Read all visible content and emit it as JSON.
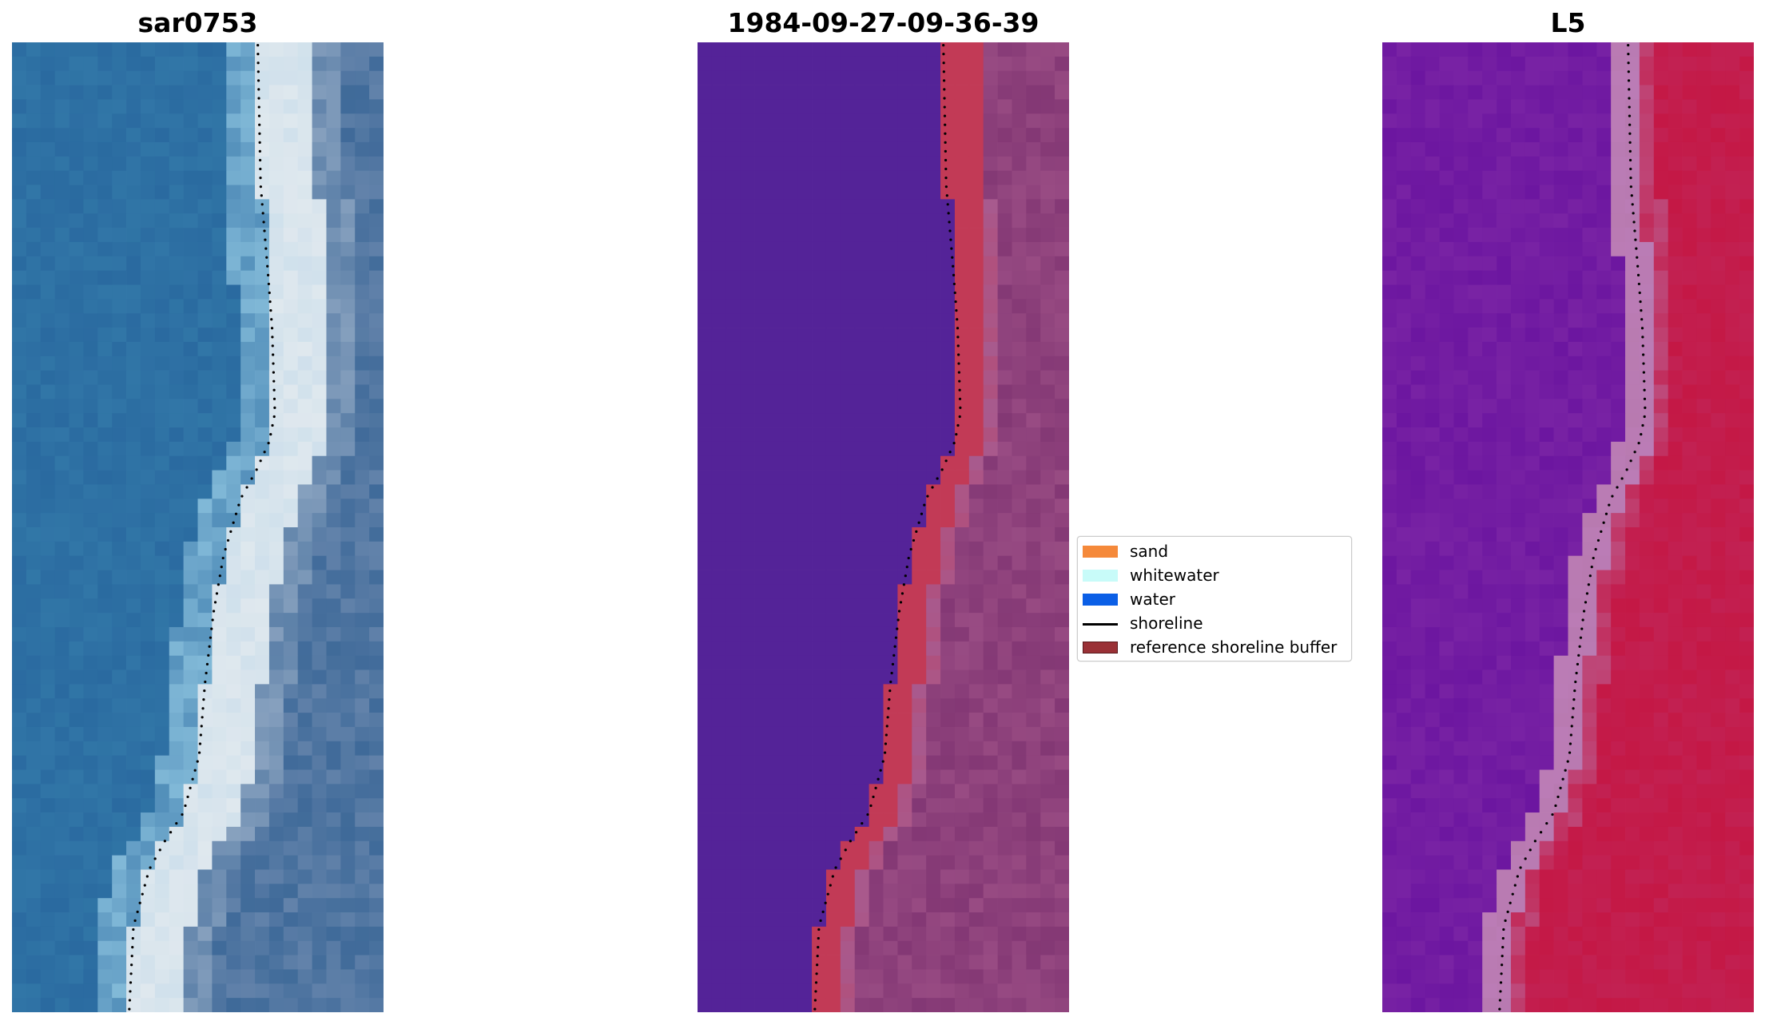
{
  "panels": [
    {
      "id": "rgb",
      "title": "sar0753"
    },
    {
      "id": "classification",
      "title": "1984-09-27-09-36-39"
    },
    {
      "id": "index",
      "title": "L5"
    }
  ],
  "legend": {
    "items": [
      {
        "label": "sand",
        "kind": "patch",
        "color": "#f5893a"
      },
      {
        "label": "whitewater",
        "kind": "patch",
        "color": "#c8fbf9"
      },
      {
        "label": "water",
        "kind": "patch",
        "color": "#0b5fe6"
      },
      {
        "label": "shoreline",
        "kind": "line",
        "color": "#000000"
      },
      {
        "label": "reference shoreline buffer",
        "kind": "patch",
        "color": "#9a3136",
        "edge": "#5a1a1d"
      }
    ]
  },
  "colors": {
    "rgb_water": "#2a6aa0",
    "rgb_surf": "#dfe8ee",
    "rgb_land": "#3f6a99",
    "class_water": "#542398",
    "class_buffer": "#c23a56",
    "class_land": "#7a2f6e",
    "class_fringe": "#a85a8e",
    "index_water": "#6c16a0",
    "index_fringe": "#b87ab0",
    "index_land": "#c41845",
    "shoreline_dots": "#000000"
  }
}
